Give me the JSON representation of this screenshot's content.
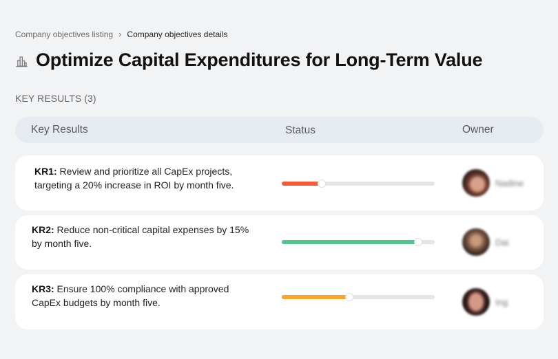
{
  "breadcrumb": {
    "items": [
      {
        "label": "Company objectives listing"
      },
      {
        "label": "Company objectives details"
      }
    ],
    "separator": "›"
  },
  "page": {
    "title": "Optimize Capital Expenditures for Long-Term Value",
    "icon": "buildings-icon"
  },
  "section": {
    "label": "KEY RESULTS (3)"
  },
  "table": {
    "headers": {
      "key_results": "Key Results",
      "status": "Status",
      "owner": "Owner"
    },
    "rows": [
      {
        "id": "KR1:",
        "text": " Review and prioritize all CapEx projects, targeting a 20% increase in ROI by month five.",
        "progress": 26,
        "progress_color": "#f85a35",
        "owner": "Nadine"
      },
      {
        "id": "KR2:",
        "text": " Reduce non-critical capital expenses by 15% by month five.",
        "progress": 89,
        "progress_color": "#54c48f",
        "owner": "Dai"
      },
      {
        "id": "KR3:",
        "text": " Ensure 100% compliance with approved CapEx budgets by month five.",
        "progress": 44,
        "progress_color": "#f9a52e",
        "owner": "Ing"
      }
    ]
  },
  "colors": {
    "background": "#f2f3f5",
    "header_bar": "#e6ebf2",
    "card": "#ffffff",
    "track": "#e6e6e6"
  }
}
